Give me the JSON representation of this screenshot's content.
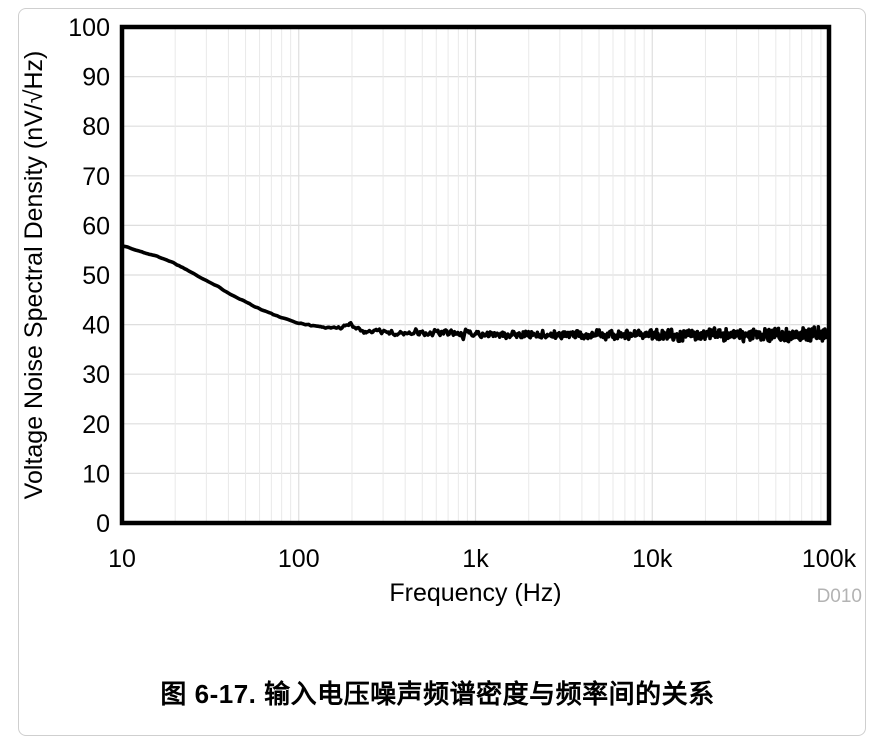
{
  "figure": {
    "caption": "图 6-17. 输入电压噪声频谱密度与频率间的关系",
    "watermark": "D010"
  },
  "colors": {
    "curve": "#000000",
    "axis_border": "#000000",
    "grid_major": "#dedede",
    "grid_minor": "#e9e9e9",
    "tick_text": "#000000",
    "watermark_text": "#b3b3b3",
    "card_border": "#cfcfcf"
  },
  "chart_data": {
    "type": "line",
    "title": "",
    "xlabel": "Frequency (Hz)",
    "ylabel": "Voltage Noise Spectral Density (nV/√Hz)",
    "x_scale": "log",
    "x_range_hz": [
      10,
      100000
    ],
    "x_tick_labels": [
      "10",
      "100",
      "1k",
      "10k",
      "100k"
    ],
    "y_range": [
      0,
      100
    ],
    "y_tick_step": 10,
    "y_tick_labels": [
      "0",
      "10",
      "20",
      "30",
      "40",
      "50",
      "60",
      "70",
      "80",
      "90",
      "100"
    ],
    "grid": "major horizontal every 10; log minor verticals 2-9 per decade",
    "legend": "none",
    "series": [
      {
        "name": "input voltage noise spectral density",
        "color": "#000000",
        "points_hz_nv": [
          [
            10,
            56
          ],
          [
            12,
            55
          ],
          [
            14,
            54.3
          ],
          [
            17,
            53.4
          ],
          [
            20,
            52.3
          ],
          [
            24,
            50.8
          ],
          [
            29,
            49.2
          ],
          [
            35,
            47.6
          ],
          [
            42,
            46.0
          ],
          [
            50,
            44.6
          ],
          [
            60,
            43.2
          ],
          [
            72,
            42.0
          ],
          [
            86,
            41.0
          ],
          [
            100,
            40.3
          ],
          [
            120,
            39.8
          ],
          [
            145,
            39.4
          ],
          [
            175,
            39.4
          ],
          [
            195,
            40.1
          ],
          [
            215,
            39.3
          ],
          [
            240,
            38.5
          ],
          [
            270,
            38.9
          ],
          [
            310,
            38.4
          ],
          [
            370,
            38.2
          ],
          [
            450,
            38.5
          ],
          [
            550,
            38.0
          ],
          [
            680,
            38.4
          ],
          [
            820,
            37.9
          ],
          [
            1000,
            38.2
          ],
          [
            1400,
            37.9
          ],
          [
            2000,
            38.1
          ],
          [
            3000,
            37.8
          ],
          [
            4500,
            38.0
          ],
          [
            7000,
            37.9
          ],
          [
            10000,
            38.0
          ],
          [
            15000,
            37.8
          ],
          [
            22000,
            38.0
          ],
          [
            33000,
            37.9
          ],
          [
            50000,
            38.0
          ],
          [
            75000,
            38.0
          ],
          [
            100000,
            38.2
          ]
        ],
        "flatband_level_nv": 38,
        "value_at_10hz_nv": 56
      }
    ],
    "noise_texture": {
      "seed": 1337,
      "starts_above_hz": 130,
      "amplitude_at_1khz_nv": 0.8,
      "amplitude_at_100khz_nv": 1.6,
      "spike_band_hz": [
        450,
        950
      ],
      "spike_gain": 1.5,
      "points_per_decade": [
        90,
        160,
        300,
        560
      ]
    }
  }
}
